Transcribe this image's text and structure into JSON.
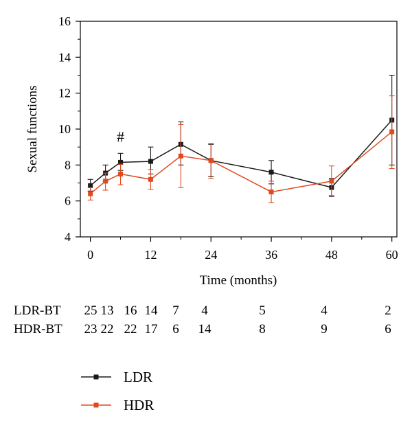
{
  "chart_data": {
    "type": "line",
    "xlabel": "Time (months)",
    "ylabel": "Sexual functions",
    "xlim": [
      -2,
      61
    ],
    "ylim": [
      4,
      16
    ],
    "x_ticks": [
      0,
      12,
      24,
      36,
      48,
      60
    ],
    "y_ticks": [
      4,
      6,
      8,
      10,
      12,
      14,
      16
    ],
    "annotation": "#",
    "annotation_at": {
      "x": 6,
      "y": 9.3
    },
    "series": [
      {
        "name": "LDR",
        "color": "#1a1a1a",
        "x": [
          0,
          3,
          6,
          12,
          18,
          24,
          36,
          48,
          60
        ],
        "y": [
          6.85,
          7.55,
          8.15,
          8.2,
          9.15,
          8.25,
          7.6,
          6.75,
          10.5
        ],
        "err_low": [
          0.3,
          0.45,
          0.45,
          0.7,
          1.15,
          0.9,
          0.65,
          0.5,
          2.5
        ],
        "err_high": [
          0.35,
          0.45,
          0.5,
          0.8,
          1.25,
          0.9,
          0.65,
          0.5,
          2.5
        ]
      },
      {
        "name": "HDR",
        "color": "#e04a20",
        "x": [
          0,
          3,
          6,
          12,
          18,
          24,
          36,
          48,
          60
        ],
        "y": [
          6.4,
          7.1,
          7.5,
          7.2,
          8.5,
          8.25,
          6.5,
          7.1,
          9.85
        ],
        "err_low": [
          0.35,
          0.5,
          0.6,
          0.55,
          1.75,
          1.0,
          0.6,
          0.8,
          2.05
        ],
        "err_high": [
          0.35,
          0.45,
          0.55,
          0.55,
          1.75,
          0.95,
          0.6,
          0.85,
          2.0
        ]
      }
    ],
    "legend_placement": "bottom-left"
  },
  "at_risk_table": {
    "rows": [
      {
        "label": "LDR-BT",
        "values": [
          "25",
          "13",
          "16",
          "14",
          "7",
          "4",
          "5",
          "4",
          "2"
        ]
      },
      {
        "label": "HDR-BT",
        "values": [
          "23",
          "22",
          "22",
          "17",
          "6",
          "14",
          "8",
          "9",
          "6"
        ]
      }
    ]
  }
}
